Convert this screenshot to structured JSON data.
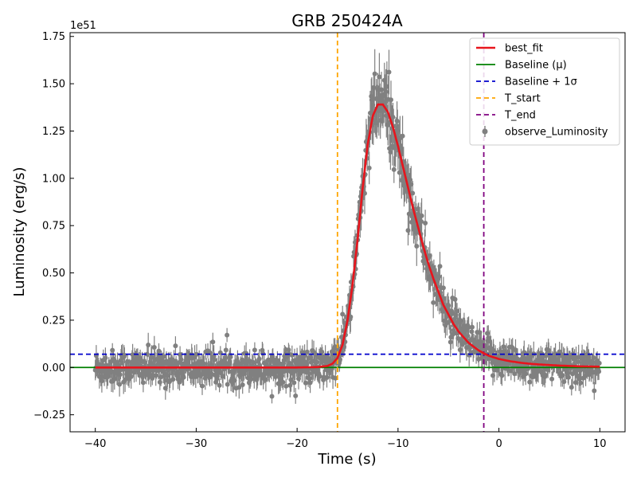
{
  "chart_data": {
    "type": "scatter",
    "title": "GRB 250424A",
    "xlabel": "Time (s)",
    "ylabel": "Luminosity (erg/s)",
    "y_offset_label": "1e51",
    "xlim": [
      -42.5,
      12.5
    ],
    "ylim": [
      -0.34,
      1.77
    ],
    "x_ticks": [
      -40,
      -30,
      -20,
      -10,
      0,
      10
    ],
    "x_tick_labels": [
      "−40",
      "−30",
      "−20",
      "−10",
      "0",
      "10"
    ],
    "y_ticks": [
      -0.25,
      0.0,
      0.25,
      0.5,
      0.75,
      1.0,
      1.25,
      1.5,
      1.75
    ],
    "y_tick_labels": [
      "−0.25",
      "0.00",
      "0.25",
      "0.50",
      "0.75",
      "1.00",
      "1.25",
      "1.50",
      "1.75"
    ],
    "grid": false,
    "legend_position": "top-right",
    "baseline": 0.0,
    "baseline_plus_sigma": 0.07,
    "t_start": -16.0,
    "t_end": -1.5,
    "observed": {
      "name": "observe_Luminosity",
      "color": "#808080",
      "x_start": -40.0,
      "x_end": 9.95,
      "x_step": 0.05,
      "values_note": "Observed luminosity (units of 1e51 erg/s) sampled at x_start + i*x_step; follows best_fit with noise",
      "peak_value": 1.62,
      "typical_error": 0.05
    },
    "best_fit": {
      "name": "best_fit",
      "color": "#e8141c",
      "x": [
        -40,
        -20,
        -18,
        -17,
        -16.5,
        -16,
        -15.5,
        -15,
        -14.5,
        -14,
        -13.5,
        -13,
        -12.5,
        -12,
        -11.5,
        -11,
        -10.5,
        -10,
        -9.5,
        -9,
        -8.5,
        -8,
        -7.5,
        -7,
        -6.5,
        -6,
        -5.5,
        -5,
        -4.5,
        -4,
        -3.5,
        -3,
        -2.5,
        -2,
        -1.5,
        -1,
        0,
        1,
        2,
        3,
        4,
        5,
        6,
        7,
        8,
        9,
        10
      ],
      "values": [
        0.0,
        0.0,
        0.002,
        0.008,
        0.02,
        0.05,
        0.12,
        0.25,
        0.44,
        0.68,
        0.95,
        1.18,
        1.33,
        1.39,
        1.39,
        1.35,
        1.27,
        1.17,
        1.06,
        0.95,
        0.84,
        0.74,
        0.64,
        0.55,
        0.47,
        0.4,
        0.33,
        0.28,
        0.23,
        0.19,
        0.16,
        0.13,
        0.11,
        0.09,
        0.075,
        0.062,
        0.045,
        0.034,
        0.026,
        0.02,
        0.016,
        0.013,
        0.01,
        0.008,
        0.006,
        0.005,
        0.004
      ]
    },
    "legend": [
      {
        "label": "best_fit",
        "color": "#e8141c",
        "style": "solid-thick"
      },
      {
        "label": "Baseline (μ)",
        "color": "#008000",
        "style": "solid"
      },
      {
        "label": "Baseline + 1σ",
        "color": "#0000cc",
        "style": "dashed"
      },
      {
        "label": "T_start",
        "color": "#ffa500",
        "style": "dashed"
      },
      {
        "label": "T_end",
        "color": "#800080",
        "style": "dashed"
      },
      {
        "label": "observe_Luminosity",
        "color": "#808080",
        "style": "marker"
      }
    ]
  }
}
